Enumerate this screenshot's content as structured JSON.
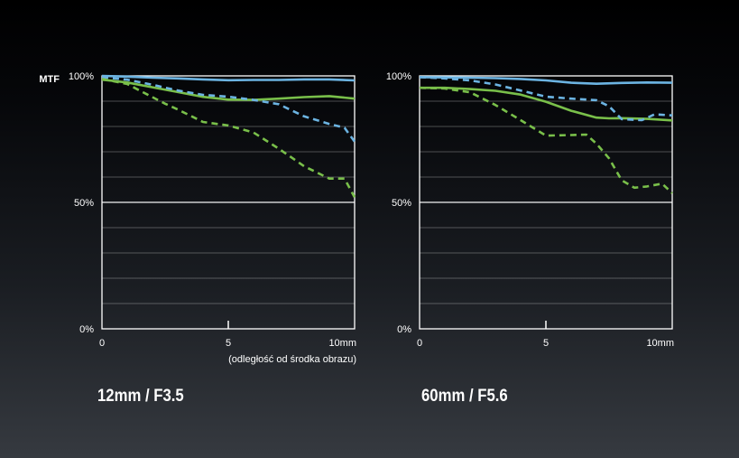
{
  "mtf_label": "MTF",
  "x_subtitle": "(odległość od środka obrazu)",
  "colors": {
    "background_top": "#000000",
    "background_bottom": "#363a40",
    "grid": "#ffffff",
    "sagittal_line": "#6cb4e2",
    "meridional_line": "#79bf4a"
  },
  "chart_data": [
    {
      "type": "line",
      "title": "12mm / F3.5",
      "xlabel": "(odległość od środka obrazu)",
      "ylabel": "MTF",
      "xlim": [
        0,
        10
      ],
      "ylim": [
        0,
        100
      ],
      "x_ticks": [
        {
          "value": 0,
          "label": "0"
        },
        {
          "value": 5,
          "label": "5"
        },
        {
          "value": 10,
          "label": "10mm"
        }
      ],
      "y_ticks": [
        {
          "value": 100,
          "label": "100%"
        },
        {
          "value": 50,
          "label": "50%"
        },
        {
          "value": 0,
          "label": "0%"
        }
      ],
      "gridlines": [
        10,
        20,
        30,
        40,
        50,
        60,
        70,
        80,
        90
      ],
      "series": [
        {
          "name": "blue-solid",
          "color": "#6cb4e2",
          "dash": false,
          "x": [
            0,
            1,
            2,
            3,
            4,
            5,
            6,
            7,
            8,
            9,
            10
          ],
          "y": [
            100,
            99.7,
            99.3,
            99,
            98.6,
            98.3,
            98.4,
            98.4,
            98.6,
            98.6,
            98.2
          ]
        },
        {
          "name": "green-solid",
          "color": "#79bf4a",
          "dash": false,
          "x": [
            0,
            1,
            2,
            3,
            4,
            5,
            6,
            7,
            8,
            9,
            10
          ],
          "y": [
            98.5,
            97.4,
            95.5,
            93.6,
            91.7,
            90.6,
            90.5,
            91,
            91.6,
            92,
            91
          ]
        },
        {
          "name": "blue-dashed",
          "color": "#6cb4e2",
          "dash": true,
          "x": [
            0,
            1,
            2,
            3,
            4,
            5,
            6,
            7,
            8,
            9,
            9.6,
            10
          ],
          "y": [
            99.5,
            98.5,
            96.5,
            94.2,
            92.5,
            91.8,
            90.5,
            88.8,
            84,
            81,
            79.5,
            74
          ]
        },
        {
          "name": "green-dashed",
          "color": "#79bf4a",
          "dash": true,
          "x": [
            0,
            1,
            1.8,
            2.5,
            3,
            4,
            5,
            6,
            7,
            8,
            9,
            9.6,
            10
          ],
          "y": [
            98.8,
            96.8,
            92.6,
            89,
            86.7,
            81.8,
            80.4,
            77.6,
            71.2,
            64.3,
            59.4,
            59.4,
            52
          ]
        }
      ]
    },
    {
      "type": "line",
      "title": "60mm / F5.6",
      "xlabel": "",
      "ylabel": "",
      "xlim": [
        0,
        10
      ],
      "ylim": [
        0,
        100
      ],
      "x_ticks": [
        {
          "value": 0,
          "label": "0"
        },
        {
          "value": 5,
          "label": "5"
        },
        {
          "value": 10,
          "label": "10mm"
        }
      ],
      "y_ticks": [
        {
          "value": 100,
          "label": "100%"
        },
        {
          "value": 50,
          "label": "50%"
        },
        {
          "value": 0,
          "label": "0%"
        }
      ],
      "gridlines": [
        10,
        20,
        30,
        40,
        50,
        60,
        70,
        80,
        90
      ],
      "series": [
        {
          "name": "blue-solid",
          "color": "#6cb4e2",
          "dash": false,
          "x": [
            0,
            1,
            2,
            3,
            4,
            5,
            6,
            7,
            8,
            9,
            10
          ],
          "y": [
            99.5,
            99.4,
            99.3,
            99.1,
            98.8,
            98.2,
            97.3,
            96.9,
            97.2,
            97.4,
            97.3
          ]
        },
        {
          "name": "green-solid",
          "color": "#79bf4a",
          "dash": false,
          "x": [
            0,
            1,
            2,
            3,
            4,
            5,
            6,
            7,
            7.5,
            8,
            9,
            10
          ],
          "y": [
            95.3,
            95.3,
            94.8,
            94.1,
            92.6,
            89.8,
            86.2,
            83.5,
            83.2,
            83.3,
            83,
            82.4
          ]
        },
        {
          "name": "blue-dashed",
          "color": "#6cb4e2",
          "dash": true,
          "x": [
            0,
            1,
            2,
            3,
            4,
            5,
            6,
            7,
            7.5,
            8,
            8.8,
            9.3,
            10
          ],
          "y": [
            99.5,
            99,
            98.2,
            96.6,
            94.2,
            91.8,
            91,
            90.4,
            88,
            82.9,
            82.5,
            84.8,
            84.4
          ]
        },
        {
          "name": "green-dashed",
          "color": "#79bf4a",
          "dash": true,
          "x": [
            0,
            1,
            2,
            3,
            4,
            5,
            6,
            6.6,
            7,
            7.5,
            8,
            8.5,
            9,
            9.6,
            10
          ],
          "y": [
            95.3,
            95,
            93.5,
            88.5,
            82.5,
            76.4,
            76.6,
            76.8,
            73.2,
            67.4,
            58.7,
            55.8,
            56.3,
            57.4,
            53.6
          ]
        }
      ]
    }
  ]
}
